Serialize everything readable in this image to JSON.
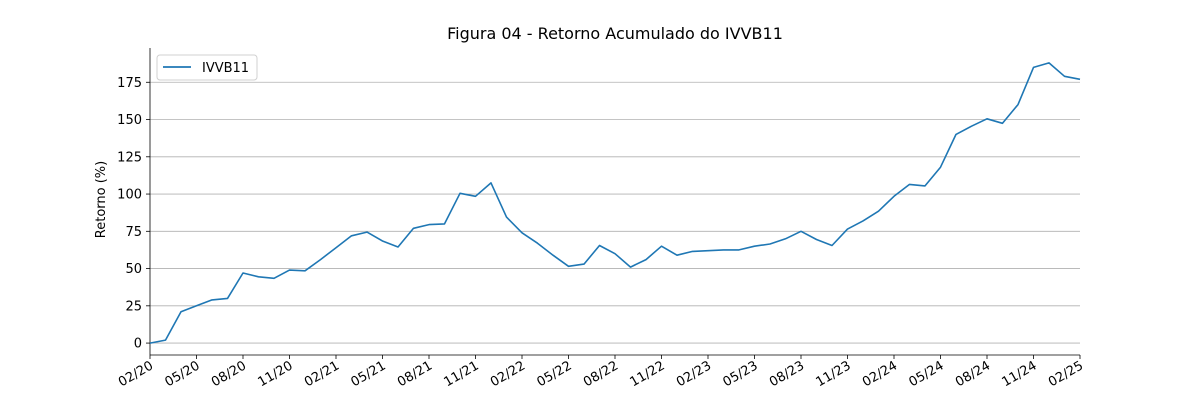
{
  "chart_data": {
    "type": "line",
    "title": "Figura 04 - Retorno Acumulado do IVVB11",
    "xlabel": "",
    "ylabel": "Retorno (%)",
    "ylim": [
      -8,
      198
    ],
    "y_ticks": [
      0,
      25,
      50,
      75,
      100,
      125,
      150,
      175
    ],
    "x_tick_labels": [
      "02/20",
      "05/20",
      "08/20",
      "11/20",
      "02/21",
      "05/21",
      "08/21",
      "11/21",
      "02/22",
      "05/22",
      "08/22",
      "11/22",
      "02/23",
      "05/23",
      "08/23",
      "11/23",
      "02/24",
      "05/24",
      "08/24",
      "11/24",
      "02/25"
    ],
    "grid": "horizontal",
    "legend_position": "top-left",
    "color": "#1f77b4",
    "x": [
      "02/20",
      "03/20",
      "04/20",
      "05/20",
      "06/20",
      "07/20",
      "08/20",
      "09/20",
      "10/20",
      "11/20",
      "12/20",
      "01/21",
      "02/21",
      "03/21",
      "04/21",
      "05/21",
      "06/21",
      "07/21",
      "08/21",
      "09/21",
      "10/21",
      "11/21",
      "12/21",
      "01/22",
      "02/22",
      "03/22",
      "04/22",
      "05/22",
      "06/22",
      "07/22",
      "08/22",
      "09/22",
      "10/22",
      "11/22",
      "12/22",
      "01/23",
      "02/23",
      "03/23",
      "04/23",
      "05/23",
      "06/23",
      "07/23",
      "08/23",
      "09/23",
      "10/23",
      "11/23",
      "12/23",
      "01/24",
      "02/24",
      "03/24",
      "04/24",
      "05/24",
      "06/24",
      "07/24",
      "08/24",
      "09/24",
      "10/24",
      "11/24",
      "12/24",
      "01/25",
      "02/25"
    ],
    "series": [
      {
        "name": "IVVB11",
        "values": [
          0,
          2,
          21,
          25,
          29,
          30,
          47,
          44.5,
          43.5,
          49,
          48.5,
          56,
          64,
          72,
          74.5,
          68.5,
          64.5,
          77,
          79.5,
          80,
          100.5,
          98.5,
          107.5,
          84.5,
          74,
          67,
          59,
          51.5,
          53,
          65.5,
          60,
          51,
          56,
          65,
          59,
          61.5,
          62,
          62.5,
          62.5,
          65,
          66.5,
          70,
          75,
          69.5,
          65.5,
          76.5,
          82,
          88.5,
          98.5,
          106.5,
          105.5,
          118,
          140,
          145.5,
          150.5,
          147.5,
          160,
          185,
          188,
          179,
          177
        ]
      }
    ]
  }
}
